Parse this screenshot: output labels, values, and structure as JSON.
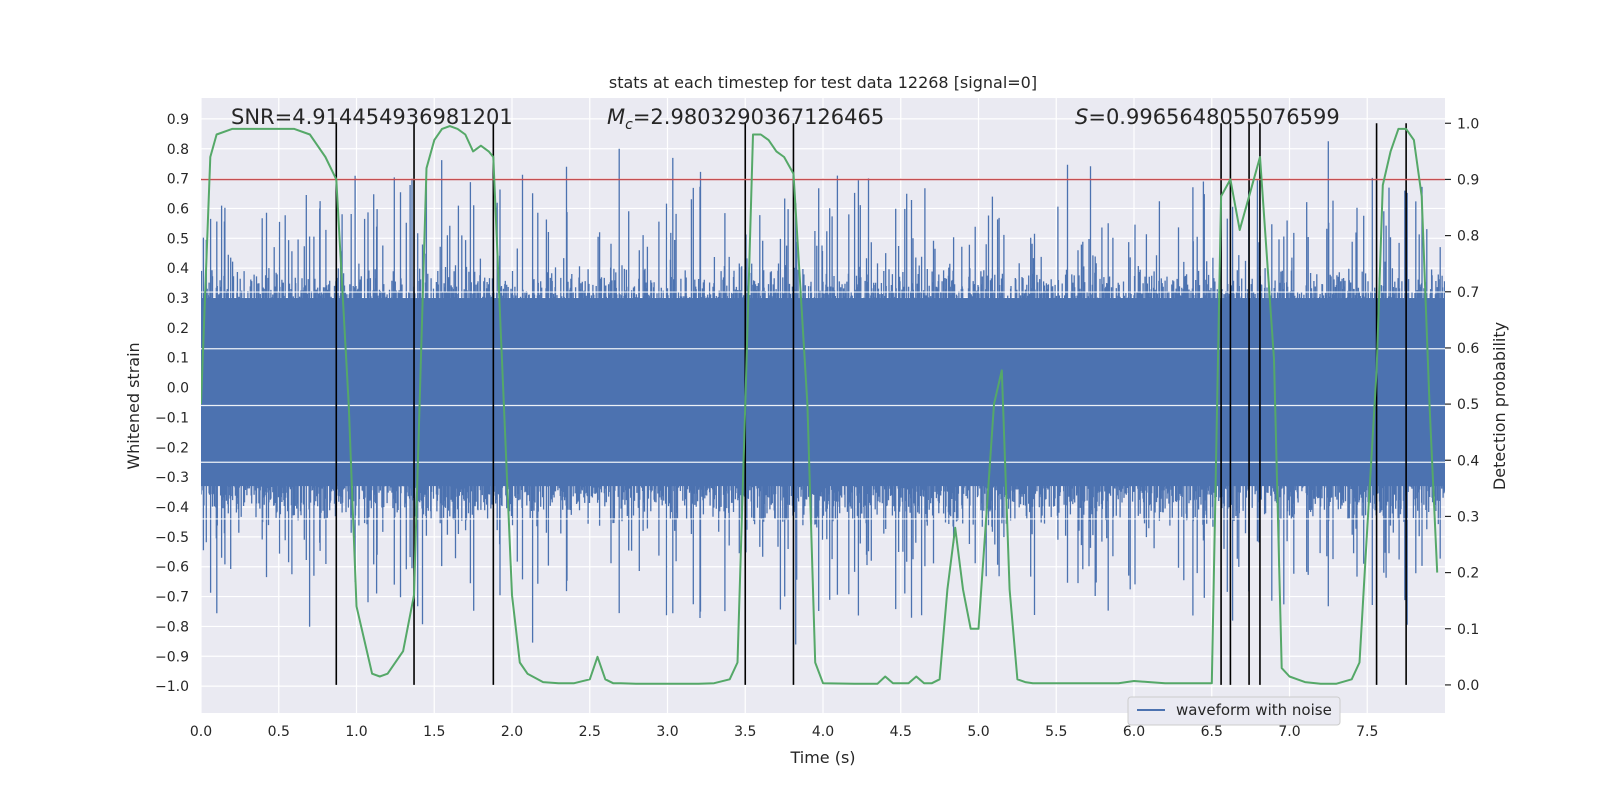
{
  "chart_data": {
    "type": "line",
    "title": "stats at each timestep for test data 12268 [signal=0]",
    "xlabel": "Time (s)",
    "ylabel_left": "Whitened strain",
    "ylabel_right": "Detection probability",
    "xlim": [
      0.0,
      8.0
    ],
    "ylim_left": [
      -1.09,
      0.97
    ],
    "ylim_right": [
      -0.05,
      1.045
    ],
    "x_ticks": [
      0.0,
      0.5,
      1.0,
      1.5,
      2.0,
      2.5,
      3.0,
      3.5,
      4.0,
      4.5,
      5.0,
      5.5,
      6.0,
      6.5,
      7.0,
      7.5
    ],
    "x_tick_labels": [
      "0.0",
      "0.5",
      "1.0",
      "1.5",
      "2.0",
      "2.5",
      "3.0",
      "3.5",
      "4.0",
      "4.5",
      "5.0",
      "5.5",
      "6.0",
      "6.5",
      "7.0",
      "7.5"
    ],
    "y_left_ticks": [
      0.9,
      0.8,
      0.7,
      0.6,
      0.5,
      0.4,
      0.3,
      0.2,
      0.1,
      0.0,
      -0.1,
      -0.2,
      -0.3,
      -0.4,
      -0.5,
      -0.6,
      -0.7,
      -0.8,
      -0.9,
      -1.0
    ],
    "y_left_tick_labels": [
      "0.9",
      "0.8",
      "0.7",
      "0.6",
      "0.5",
      "0.4",
      "0.3",
      "0.2",
      "0.1",
      "0.0",
      "−0.1",
      "−0.2",
      "−0.3",
      "−0.4",
      "−0.5",
      "−0.6",
      "−0.7",
      "−0.8",
      "−0.9",
      "−1.0"
    ],
    "y_right_ticks": [
      1.0,
      0.9,
      0.8,
      0.7,
      0.6,
      0.5,
      0.4,
      0.3,
      0.2,
      0.1,
      0.0
    ],
    "y_right_tick_labels": [
      "1.0",
      "0.9",
      "0.8",
      "0.7",
      "0.6",
      "0.5",
      "0.4",
      "0.3",
      "0.2",
      "0.1",
      "0.0"
    ],
    "annotations": {
      "snr": "SNR=4.914454936981201",
      "mc_symbol": "M",
      "mc_subscript": "c",
      "mc_value": "=2.9803290367126465",
      "s_symbol": "S",
      "s_value": "=0.9965648055076599"
    },
    "threshold_right": 0.9,
    "detection_events_x": [
      0.87,
      1.37,
      1.88,
      3.5,
      3.81,
      6.56,
      6.62,
      6.74,
      6.81,
      7.56,
      7.75
    ],
    "series": [
      {
        "name": "waveform with noise",
        "color": "#4c72b0",
        "axis": "left",
        "description": "dense whitened strain noise, core approx ±0.3 to ±0.45 with spikes"
      },
      {
        "name": "detection probability",
        "color": "#55a868",
        "axis": "right",
        "x": [
          0.0,
          0.06,
          0.1,
          0.2,
          0.3,
          0.4,
          0.5,
          0.6,
          0.7,
          0.75,
          0.8,
          0.87,
          0.95,
          1.0,
          1.05,
          1.1,
          1.15,
          1.2,
          1.3,
          1.37,
          1.45,
          1.5,
          1.55,
          1.6,
          1.65,
          1.7,
          1.75,
          1.8,
          1.85,
          1.88,
          2.0,
          2.05,
          2.1,
          2.2,
          2.3,
          2.4,
          2.5,
          2.55,
          2.6,
          2.65,
          2.7,
          2.8,
          2.9,
          3.0,
          3.1,
          3.2,
          3.3,
          3.4,
          3.45,
          3.5,
          3.55,
          3.6,
          3.65,
          3.7,
          3.75,
          3.81,
          3.9,
          3.95,
          4.0,
          4.2,
          4.35,
          4.4,
          4.45,
          4.55,
          4.6,
          4.65,
          4.7,
          4.75,
          4.8,
          4.85,
          4.9,
          4.95,
          5.0,
          5.05,
          5.1,
          5.15,
          5.2,
          5.25,
          5.3,
          5.35,
          5.4,
          5.5,
          5.6,
          5.7,
          5.8,
          5.9,
          6.0,
          6.1,
          6.2,
          6.3,
          6.4,
          6.5,
          6.56,
          6.62,
          6.68,
          6.74,
          6.81,
          6.9,
          6.95,
          7.0,
          7.05,
          7.1,
          7.2,
          7.3,
          7.4,
          7.45,
          7.5,
          7.56,
          7.6,
          7.65,
          7.7,
          7.75,
          7.8,
          7.85,
          7.9,
          7.95
        ],
        "y": [
          0.5,
          0.94,
          0.98,
          0.99,
          0.99,
          0.99,
          0.99,
          0.99,
          0.98,
          0.96,
          0.94,
          0.9,
          0.5,
          0.14,
          0.08,
          0.02,
          0.015,
          0.02,
          0.06,
          0.16,
          0.92,
          0.97,
          0.99,
          0.995,
          0.99,
          0.98,
          0.95,
          0.96,
          0.95,
          0.94,
          0.16,
          0.04,
          0.02,
          0.005,
          0.003,
          0.003,
          0.01,
          0.05,
          0.01,
          0.003,
          0.003,
          0.002,
          0.002,
          0.002,
          0.002,
          0.002,
          0.003,
          0.01,
          0.04,
          0.5,
          0.98,
          0.98,
          0.97,
          0.95,
          0.94,
          0.91,
          0.5,
          0.04,
          0.003,
          0.002,
          0.002,
          0.015,
          0.003,
          0.003,
          0.015,
          0.003,
          0.003,
          0.01,
          0.17,
          0.28,
          0.17,
          0.1,
          0.1,
          0.3,
          0.5,
          0.56,
          0.17,
          0.01,
          0.005,
          0.003,
          0.003,
          0.003,
          0.003,
          0.003,
          0.003,
          0.003,
          0.007,
          0.005,
          0.003,
          0.003,
          0.003,
          0.003,
          0.87,
          0.9,
          0.81,
          0.87,
          0.94,
          0.58,
          0.03,
          0.015,
          0.01,
          0.005,
          0.002,
          0.002,
          0.01,
          0.04,
          0.28,
          0.56,
          0.89,
          0.95,
          0.99,
          0.99,
          0.97,
          0.87,
          0.5,
          0.2
        ]
      },
      {
        "name": "threshold",
        "color": "#c44e52",
        "axis": "right",
        "y_constant": 0.9
      }
    ],
    "legend": {
      "entries": [
        "waveform with noise"
      ],
      "placement": "lower-right"
    }
  }
}
